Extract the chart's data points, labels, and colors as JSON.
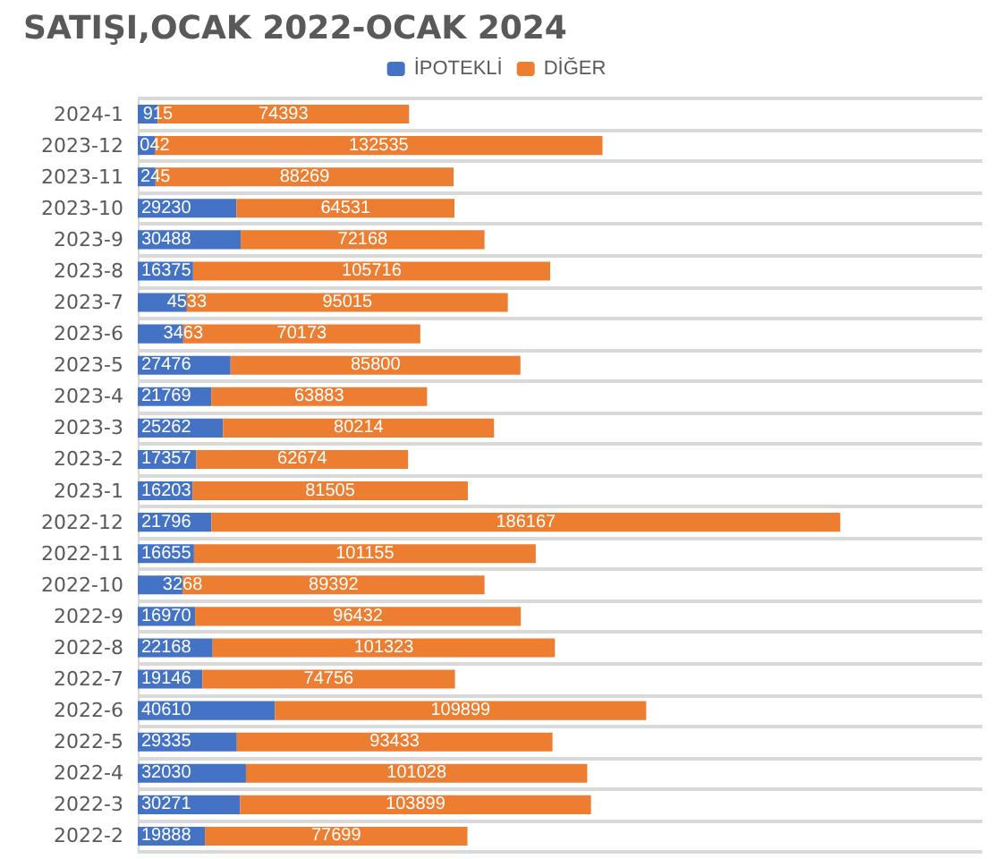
{
  "chart_data": {
    "type": "bar",
    "orientation": "horizontal",
    "stacked": true,
    "title": "SATIŞI,OCAK 2022-OCAK 2024",
    "categories": [
      "2024-1",
      "2023-12",
      "2023-11",
      "2023-10",
      "2023-9",
      "2023-8",
      "2023-7",
      "2023-6",
      "2023-5",
      "2023-4",
      "2023-3",
      "2023-2",
      "2023-1",
      "2022-12",
      "2022-11",
      "2022-10",
      "2022-9",
      "2022-8",
      "2022-7",
      "2022-6",
      "2022-5",
      "2022-4",
      "2022-3",
      "2022-2"
    ],
    "series": [
      {
        "name": "İPOTEKLİ",
        "color": "#4472c4",
        "values": [
          5915,
          5042,
          5245,
          29230,
          30488,
          16375,
          14533,
          13463,
          27476,
          21769,
          25262,
          17357,
          16203,
          21796,
          16655,
          13268,
          16970,
          22168,
          19146,
          40610,
          29335,
          32030,
          30271,
          19888
        ],
        "value_labels": [
          null,
          null,
          null,
          "29230",
          "30488",
          "16375",
          null,
          null,
          "27476",
          "21769",
          "25262",
          "17357",
          "16203",
          "21796",
          "16655",
          null,
          "16970",
          "22168",
          "19146",
          "40610",
          "29335",
          "32030",
          "30271",
          "19888"
        ]
      },
      {
        "name": "DİĞER",
        "color": "#ed7d31",
        "values": [
          74393,
          132535,
          88269,
          64531,
          72168,
          105716,
          95015,
          70173,
          85800,
          63883,
          80214,
          62674,
          81505,
          186167,
          101155,
          89392,
          96432,
          101323,
          74756,
          109899,
          93433,
          101028,
          103899,
          77699
        ],
        "value_labels": [
          "74393",
          "132535",
          "88269",
          "64531",
          "72168",
          "105716",
          "95015",
          "70173",
          "85800",
          "63883",
          "80214",
          "62674",
          "81505",
          "186167",
          "101155",
          "89392",
          "96432",
          "101323",
          "74756",
          "109899",
          "93433",
          "101028",
          "103899",
          "77699"
        ]
      }
    ],
    "annotations": [
      {
        "text": "915",
        "x": 5915,
        "y": "2024-1"
      },
      {
        "text": "042",
        "x": 5042,
        "y": "2023-12"
      },
      {
        "text": "245",
        "x": 5245,
        "y": "2023-11"
      },
      {
        "text": "4533",
        "x": 14533,
        "y": "2023-7"
      },
      {
        "text": "3463",
        "x": 13463,
        "y": "2023-6"
      },
      {
        "text": "3268",
        "x": 13268,
        "y": "2022-10"
      }
    ],
    "legend": "top",
    "grid": "y"
  }
}
